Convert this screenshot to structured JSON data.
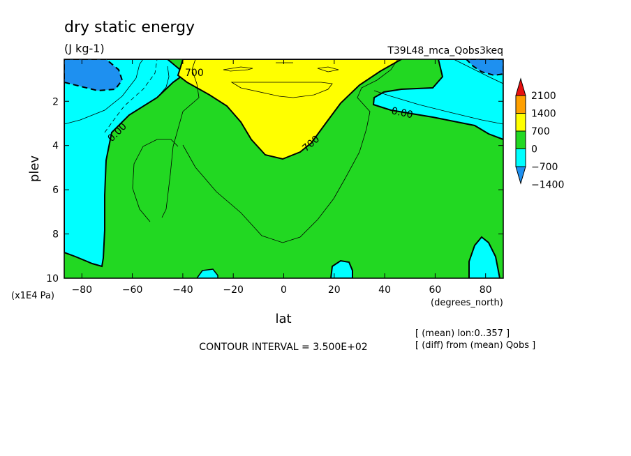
{
  "chart_data": {
    "type": "heatmap",
    "title": "dry static energy",
    "units": "(J kg-1)",
    "case_label": "T39L48_mca_Qobs3keq",
    "xlabel": "lat",
    "x_units": "(degrees_north)",
    "ylabel": "plev",
    "y_units": "(x1E4 Pa)",
    "xlim": [
      -87,
      87
    ],
    "ylim": [
      10,
      0.1
    ],
    "x_ticks": [
      -80,
      -60,
      -40,
      -20,
      0,
      20,
      40,
      60,
      80
    ],
    "y_ticks": [
      2,
      4,
      6,
      8,
      10
    ],
    "colorbar": {
      "levels": [
        -1400,
        -700,
        0,
        700,
        1400,
        2100
      ],
      "labels": [
        "2100",
        "1400",
        "700",
        "0",
        "-700",
        "-1400"
      ],
      "colors": [
        "#1e90f0",
        "#00ffff",
        "#22d822",
        "#ffff00",
        "#ffa000",
        "#e81010"
      ]
    },
    "contour_labels": [
      {
        "text": "700",
        "lat": -36,
        "plev": 0.75
      },
      {
        "text": "0.00",
        "lat": 48,
        "plev": 2.4
      },
      {
        "text": "0.00",
        "lat": -66,
        "plev": 3.3
      },
      {
        "text": "700",
        "lat": 12,
        "plev": 3.9
      }
    ],
    "contour_interval": "CONTOUR INTERVAL = 3.500E+02",
    "notes": [
      "[ (mean) lon:0..357 ]",
      "[ (diff) from (mean) Qobs ]"
    ]
  }
}
